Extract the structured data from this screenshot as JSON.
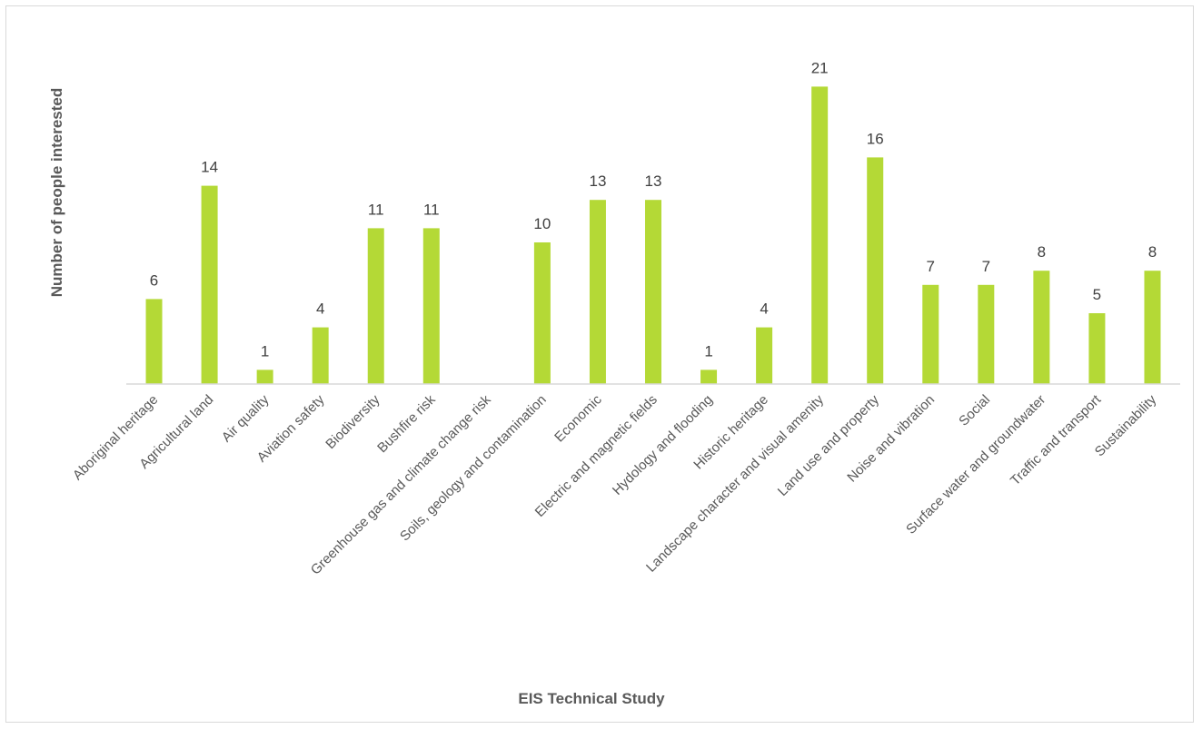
{
  "chart_data": {
    "type": "bar",
    "title": "",
    "xlabel": "EIS Technical Study",
    "ylabel": "Number of people interested",
    "categories": [
      "Aboriginal heritage",
      "Agricultural land",
      "Air quality",
      "Aviation safety",
      "Biodiversity",
      "Bushfire risk",
      "Greenhouse gas and climate change risk",
      "Soils, geology and contamination",
      "Economic",
      "Electric and magnetic fields",
      "Hydology and flooding",
      "Historic heritage",
      "Landscape character and visual amenity",
      "Land use and property",
      "Noise and vibration",
      "Social",
      "Surface water and groundwater",
      "Traffic and transport",
      "Sustainability"
    ],
    "values": [
      6,
      14,
      1,
      4,
      11,
      11,
      null,
      10,
      13,
      13,
      1,
      4,
      21,
      16,
      7,
      7,
      8,
      5,
      8
    ],
    "ylim": [
      0,
      21
    ],
    "grid": false,
    "legend": "none",
    "colors": {
      "bar": "#b4d936",
      "axis": "#d9d9d9"
    }
  }
}
